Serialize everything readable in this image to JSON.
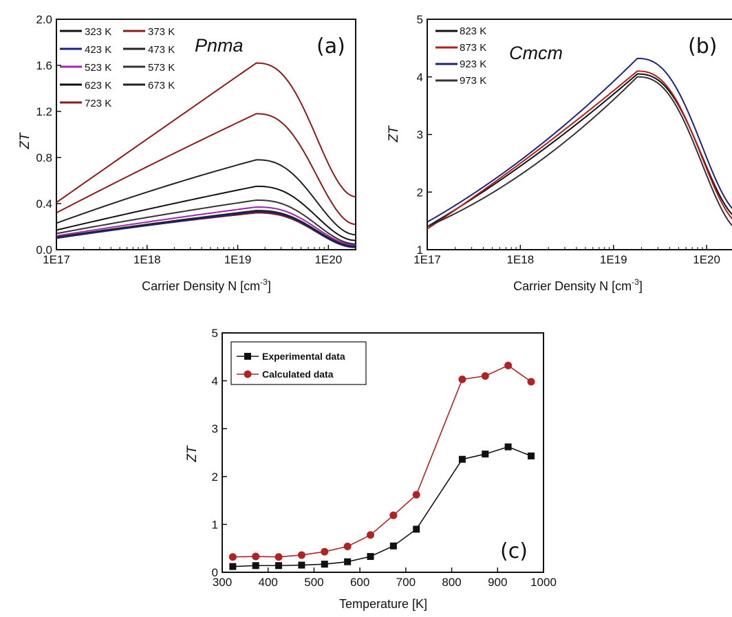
{
  "chart_data": [
    {
      "panel": "(a)",
      "type": "line",
      "annotation": "Pnma",
      "xlabel": "Carrier Density N [cm",
      "xlabel_sup": "-3",
      "xlabel_close": "]",
      "ylabel": "ZT",
      "x_scale": "log",
      "xlim": [
        1e+17,
        2e+20
      ],
      "ylim": [
        0.0,
        2.0
      ],
      "x_ticks": [
        "1E17",
        "1E18",
        "1E19",
        "1E20"
      ],
      "y_ticks": [
        "0.0",
        "0.4",
        "0.8",
        "1.2",
        "1.6",
        "2.0"
      ],
      "legend_position": "top-left",
      "series": [
        {
          "name": "323 K",
          "color": "#111111",
          "curve": [
            [
              1e+17,
              0.1
            ],
            [
              1e+18,
              0.21
            ],
            [
              1.6e+19,
              0.32
            ],
            [
              2e+20,
              0.02
            ]
          ]
        },
        {
          "name": "373 K",
          "color": "#8b1a1a",
          "curve": [
            [
              1e+17,
              0.1
            ],
            [
              1e+18,
              0.21
            ],
            [
              1.6e+19,
              0.32
            ],
            [
              2e+20,
              0.02
            ]
          ]
        },
        {
          "name": "423 K",
          "color": "#1a237e",
          "curve": [
            [
              1e+17,
              0.1
            ],
            [
              1e+18,
              0.21
            ],
            [
              1.6e+19,
              0.33
            ],
            [
              2e+20,
              0.02
            ]
          ]
        },
        {
          "name": "473 K",
          "color": "#222222",
          "curve": [
            [
              1e+17,
              0.11
            ],
            [
              1e+18,
              0.22
            ],
            [
              1.6e+19,
              0.34
            ],
            [
              2e+20,
              0.03
            ]
          ]
        },
        {
          "name": "523 K",
          "color": "#9c27b0",
          "curve": [
            [
              1e+17,
              0.12
            ],
            [
              1e+18,
              0.24
            ],
            [
              1.6e+19,
              0.37
            ],
            [
              2e+20,
              0.04
            ]
          ]
        },
        {
          "name": "573 K",
          "color": "#333333",
          "curve": [
            [
              1e+17,
              0.14
            ],
            [
              1e+18,
              0.28
            ],
            [
              1.6e+19,
              0.43
            ],
            [
              2e+20,
              0.05
            ]
          ]
        },
        {
          "name": "623 K",
          "color": "#111111",
          "curve": [
            [
              1e+17,
              0.17
            ],
            [
              1e+18,
              0.35
            ],
            [
              1.6e+19,
              0.55
            ],
            [
              2e+20,
              0.08
            ]
          ]
        },
        {
          "name": "673 K",
          "color": "#222222",
          "curve": [
            [
              1e+17,
              0.23
            ],
            [
              1e+18,
              0.5
            ],
            [
              1.6e+19,
              0.78
            ],
            [
              2e+20,
              0.13
            ]
          ]
        },
        {
          "name": "723 K",
          "color": "#8b1a1a",
          "curve": [
            [
              1e+17,
              0.32
            ],
            [
              1e+18,
              0.72
            ],
            [
              1.6e+19,
              1.18
            ],
            [
              2e+20,
              0.22
            ]
          ]
        },
        {
          "name": "",
          "color": "#8b1a1a",
          "curve": [
            [
              1e+17,
              0.41
            ],
            [
              1e+18,
              0.96
            ],
            [
              1.6e+19,
              1.62
            ],
            [
              2e+20,
              0.46
            ]
          ]
        }
      ]
    },
    {
      "panel": "(b)",
      "type": "line",
      "annotation": "Cmcm",
      "xlabel": "Carrier Density N [cm",
      "xlabel_sup": "-3",
      "xlabel_close": "]",
      "ylabel": "ZT",
      "x_scale": "log",
      "xlim": [
        1e+17,
        2.5e+20
      ],
      "ylim": [
        1,
        5
      ],
      "x_ticks": [
        "1E17",
        "1E18",
        "1E19",
        "1E20"
      ],
      "y_ticks": [
        "1",
        "2",
        "3",
        "4",
        "5"
      ],
      "legend_position": "top-left",
      "series": [
        {
          "name": "823 K",
          "color": "#111111",
          "curve": [
            [
              1e+17,
              1.4
            ],
            [
              1e+18,
              2.45
            ],
            [
              1.8e+19,
              4.05
            ],
            [
              2.5e+20,
              1.5
            ]
          ]
        },
        {
          "name": "873 K",
          "color": "#b71c1c",
          "curve": [
            [
              1e+17,
              1.36
            ],
            [
              1e+18,
              2.5
            ],
            [
              1.8e+19,
              4.1
            ],
            [
              2.5e+20,
              1.42
            ]
          ]
        },
        {
          "name": "923 K",
          "color": "#1a237e",
          "curve": [
            [
              1e+17,
              1.48
            ],
            [
              1e+18,
              2.55
            ],
            [
              1.8e+19,
              4.32
            ],
            [
              2.5e+20,
              1.6
            ]
          ]
        },
        {
          "name": "973 K",
          "color": "#333333",
          "curve": [
            [
              1e+17,
              1.4
            ],
            [
              1e+18,
              2.3
            ],
            [
              1.8e+19,
              4.0
            ],
            [
              2.5e+20,
              1.3
            ]
          ]
        }
      ]
    },
    {
      "panel": "(c)",
      "type": "line",
      "xlabel": "Temperature [K]",
      "ylabel": "ZT",
      "xlim": [
        300,
        1000
      ],
      "ylim": [
        0,
        5
      ],
      "x_ticks": [
        "300",
        "400",
        "500",
        "600",
        "700",
        "800",
        "900",
        "1000"
      ],
      "y_ticks": [
        "0",
        "1",
        "2",
        "3",
        "4",
        "5"
      ],
      "legend_position": "top-left",
      "x": [
        323,
        373,
        423,
        473,
        523,
        573,
        623,
        673,
        723,
        823,
        873,
        923,
        973
      ],
      "series": [
        {
          "name": "Experimental data",
          "marker": "square",
          "color": "#111111",
          "values": [
            0.12,
            0.14,
            0.14,
            0.15,
            0.17,
            0.22,
            0.33,
            0.55,
            0.9,
            2.36,
            2.47,
            2.62,
            2.43
          ]
        },
        {
          "name": "Calculated data",
          "marker": "circle",
          "color": "#b22222",
          "values": [
            0.32,
            0.33,
            0.32,
            0.36,
            0.43,
            0.54,
            0.78,
            1.19,
            1.62,
            4.03,
            4.1,
            4.32,
            3.98
          ]
        }
      ]
    }
  ]
}
